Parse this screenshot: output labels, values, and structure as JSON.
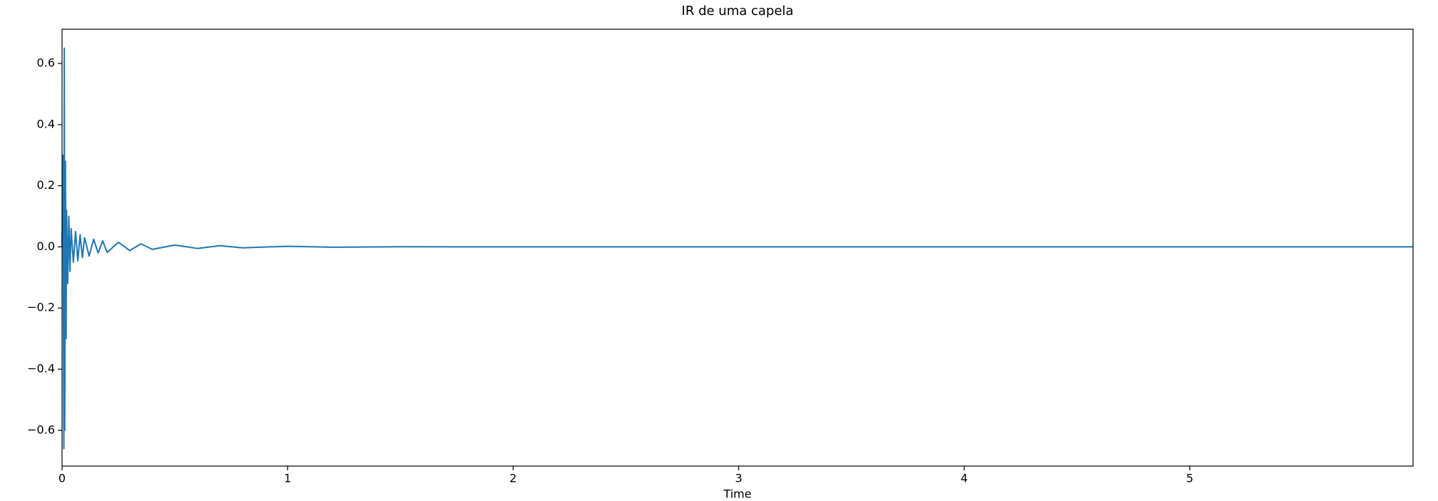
{
  "chart_data": {
    "type": "line",
    "title": "IR de uma capela",
    "x_label": "Time",
    "x": [
      0,
      0.004,
      0.008,
      0.01,
      0.012,
      0.015,
      0.018,
      0.02,
      0.025,
      0.03,
      0.035,
      0.04,
      0.05,
      0.06,
      0.07,
      0.08,
      0.09,
      0.1,
      0.12,
      0.14,
      0.16,
      0.18,
      0.2,
      0.25,
      0.3,
      0.35,
      0.4,
      0.5,
      0.6,
      0.7,
      0.8,
      1.0,
      1.2,
      1.5,
      2,
      3,
      4,
      5,
      5.99
    ],
    "series": [
      {
        "color": "#1f77b4",
        "values": [
          0,
          0.3,
          -0.66,
          0.65,
          -0.6,
          0.28,
          -0.3,
          0.12,
          -0.12,
          0.1,
          -0.08,
          0.06,
          -0.05,
          0.05,
          -0.045,
          0.04,
          -0.035,
          0.03,
          -0.03,
          0.025,
          -0.02,
          0.02,
          -0.018,
          0.015,
          -0.012,
          0.01,
          -0.008,
          0.006,
          -0.005,
          0.004,
          -0.003,
          0.002,
          -0.001,
          0.0005,
          0,
          0,
          0,
          0,
          0
        ]
      }
    ],
    "xlim": [
      0,
      5.99
    ],
    "ylim": [
      -0.717,
      0.712
    ],
    "xticks": [
      0,
      1,
      2,
      3,
      4,
      5
    ],
    "yticks": [
      {
        "value": -0.6,
        "label": "−0.6"
      },
      {
        "value": -0.4,
        "label": "−0.4"
      },
      {
        "value": -0.2,
        "label": "−0.2"
      },
      {
        "value": 0,
        "label": "0.0"
      },
      0.2,
      0.4,
      0.6
    ]
  }
}
